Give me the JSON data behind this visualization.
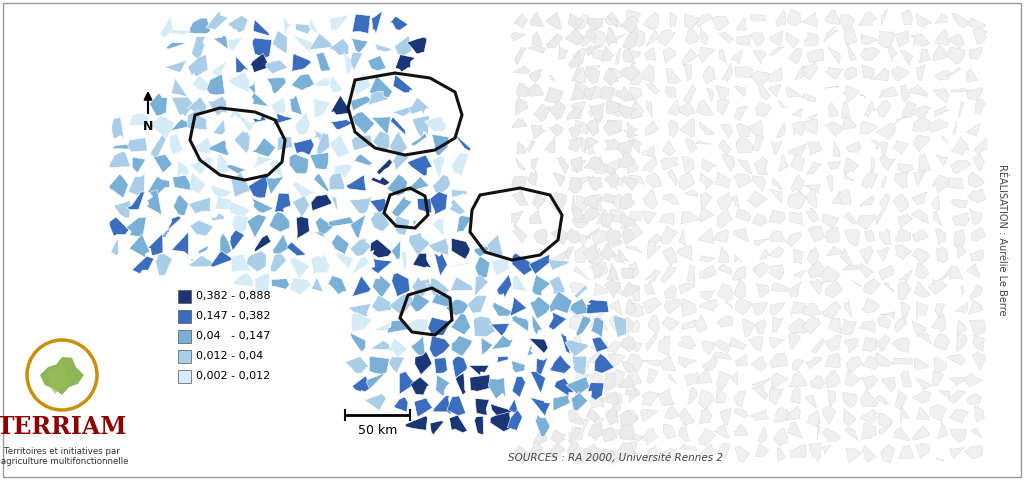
{
  "legend_entries": [
    {
      "label": "0,382 - 0,888",
      "color": "#1a3675"
    },
    {
      "label": "0,147 - 0,382",
      "color": "#3b6dbf"
    },
    {
      "label": "0,04   - 0,147",
      "color": "#7aafd6"
    },
    {
      "label": "0,012 - 0,04",
      "color": "#aacde8"
    },
    {
      "label": "0,002 - 0,012",
      "color": "#d5ecf7"
    }
  ],
  "terriam_text": "TERRIAM",
  "terriam_subtitle": "Territoires et initiatives par\nl'agriculture multifonctionnelle",
  "scale_label": "50 km",
  "sources_text": "SOURCES : RA 2000, Université Rennes 2",
  "realisation_text": "RÉALISATION : Aurélie Le Berre",
  "north_label": "N",
  "bg_color": "#ffffff",
  "terriam_color": "#8b0000",
  "outer_circle_color": "#c8900a",
  "inner_circle_color": "#6a9a30"
}
